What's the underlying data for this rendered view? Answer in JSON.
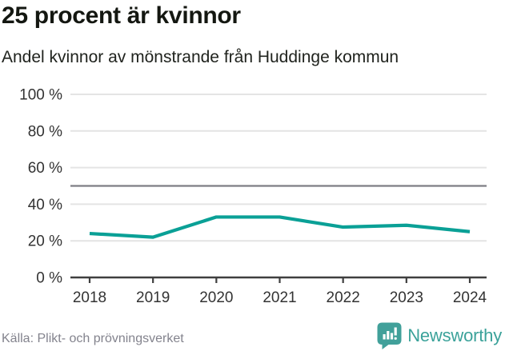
{
  "header": {
    "title": "25 procent är kvinnor",
    "subtitle": "Andel kvinnor av mönstrande från Huddinge kommun"
  },
  "chart_data": {
    "type": "line",
    "title": "25 procent är kvinnor",
    "subtitle": "Andel kvinnor av mönstrande från Huddinge kommun",
    "x": [
      2018,
      2019,
      2020,
      2021,
      2022,
      2023,
      2024
    ],
    "series": [
      {
        "name": "Andel kvinnor av mönstrande",
        "values": [
          24,
          22,
          33,
          33,
          27.5,
          28.5,
          25
        ]
      }
    ],
    "reference_line_y": 50,
    "yticks": [
      0,
      20,
      40,
      60,
      80,
      100
    ],
    "ytick_suffix": " %",
    "ylim": [
      0,
      100
    ],
    "grid": true,
    "legend": "none",
    "xlabel": "",
    "ylabel": ""
  },
  "footer": {
    "source": "Källa: Plikt- och prövningsverket",
    "brand": "Newsworthy"
  },
  "colors": {
    "line": "#0aa096",
    "reference_line": "#7d7d85",
    "gridline": "#e4e4e4",
    "axis": "#3f3f3f",
    "tick_label": "#333333",
    "brand_teal": "#3ba29a",
    "source_text": "#83838d"
  }
}
